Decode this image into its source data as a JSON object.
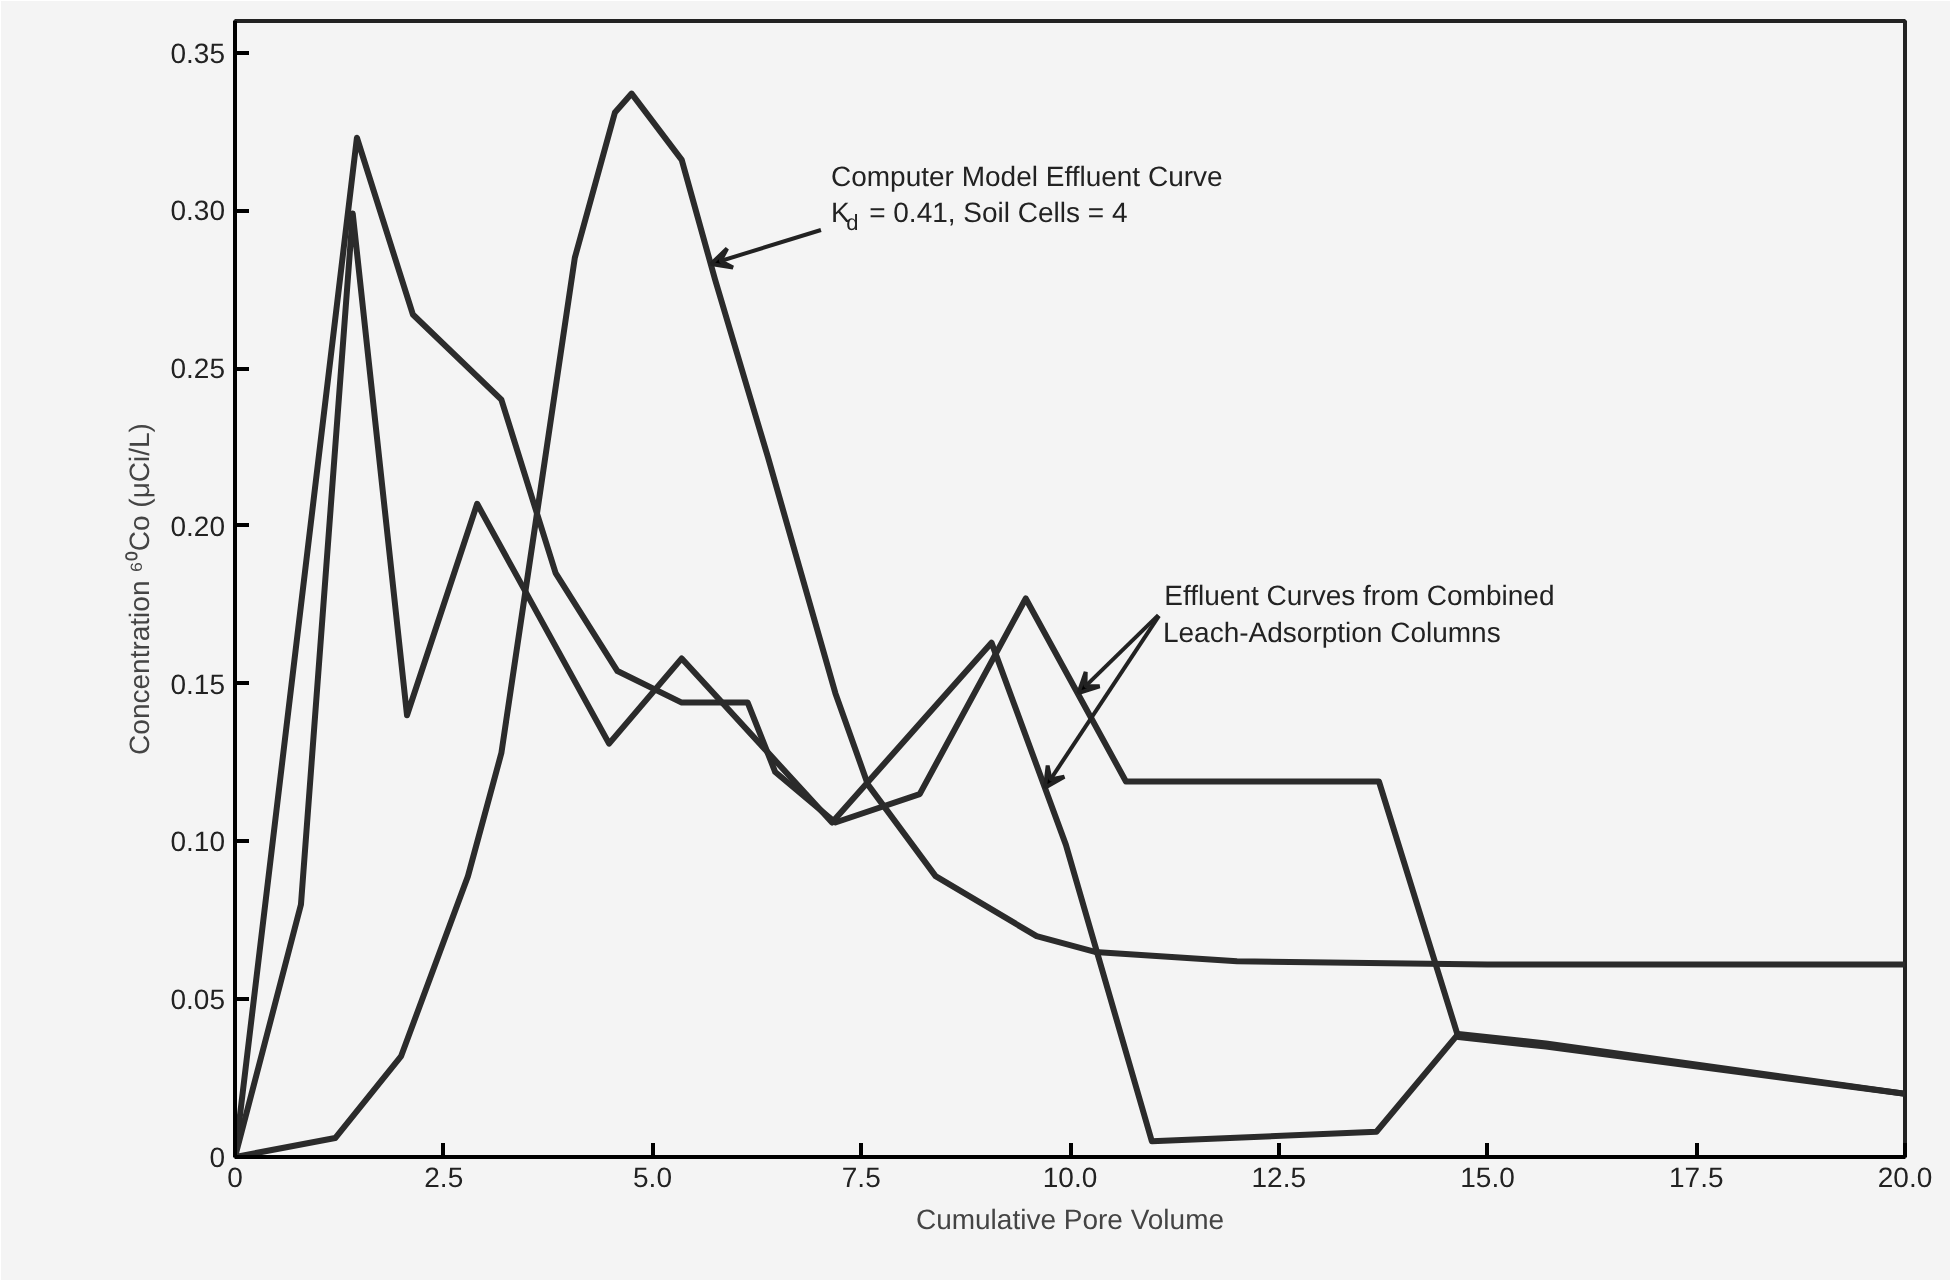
{
  "chart_data": {
    "type": "line",
    "xlabel": "Cumulative Pore Volume",
    "ylabel": "Concentration ⁶⁰Co (μCi/L)",
    "xlim": [
      0,
      20
    ],
    "ylim": [
      0,
      0.36
    ],
    "xticks": [
      0,
      2.5,
      {
        "value": 5,
        "label": "5.0"
      },
      7.5,
      {
        "value": 10,
        "label": "10.0"
      },
      12.5,
      {
        "value": 15,
        "label": "15.0"
      },
      17.5,
      {
        "value": 20,
        "label": "20.0"
      }
    ],
    "yticks": [
      0,
      0.05,
      {
        "value": 0.1,
        "label": "0.10"
      },
      0.15,
      {
        "value": 0.2,
        "label": "0.20"
      },
      0.25,
      {
        "value": 0.3,
        "label": "0.30"
      },
      0.35
    ],
    "marker": "none",
    "line_style": "solid",
    "series": [
      {
        "color": "#2b2b2b",
        "x": [
          0,
          1.2,
          1.99,
          2.79,
          3.19,
          3.6,
          4.07,
          4.55,
          4.75,
          5.35,
          5.75,
          6.38,
          7.19,
          7.58,
          8.39,
          9.6,
          10.3,
          12.0,
          15.0,
          20.0
        ],
        "values": [
          0,
          0.006,
          0.032,
          0.089,
          0.128,
          0.201,
          0.285,
          0.331,
          0.337,
          0.316,
          0.278,
          0.222,
          0.147,
          0.118,
          0.089,
          0.07,
          0.065,
          0.062,
          0.061,
          0.061
        ]
      },
      {
        "color": "#2b2b2b",
        "x": [
          0,
          1.46,
          2.13,
          3.19,
          3.84,
          4.58,
          5.35,
          6.14,
          6.47,
          7.19,
          8.2,
          9.47,
          10.67,
          13.7,
          14.65,
          15.7,
          20.0
        ],
        "values": [
          0,
          0.323,
          0.267,
          0.24,
          0.185,
          0.154,
          0.144,
          0.144,
          0.122,
          0.106,
          0.115,
          0.177,
          0.119,
          0.119,
          0.038,
          0.035,
          0.02
        ]
      },
      {
        "color": "#2b2b2b",
        "x": [
          0,
          0.79,
          1.41,
          2.06,
          2.9,
          4.48,
          5.35,
          7.15,
          9.06,
          9.95,
          10.98,
          13.67,
          14.65,
          15.7,
          20.0
        ],
        "values": [
          0,
          0.08,
          0.299,
          0.14,
          0.207,
          0.131,
          0.158,
          0.106,
          0.163,
          0.099,
          0.005,
          0.008,
          0.039,
          0.036,
          0.02
        ]
      }
    ],
    "annotations": [
      {
        "text": "Computer Model Effluent Curve\nK$_{d}$ = 0.41, Soil Cells = 4",
        "x": 5.7,
        "y": 0.283
      },
      {
        "text": "Effluent Curves from Combined",
        "x": 10.1,
        "y": 0.147
      },
      {
        "text": "Leach-Adsorption Columns",
        "x": 9.7,
        "y": 0.117
      }
    ]
  }
}
